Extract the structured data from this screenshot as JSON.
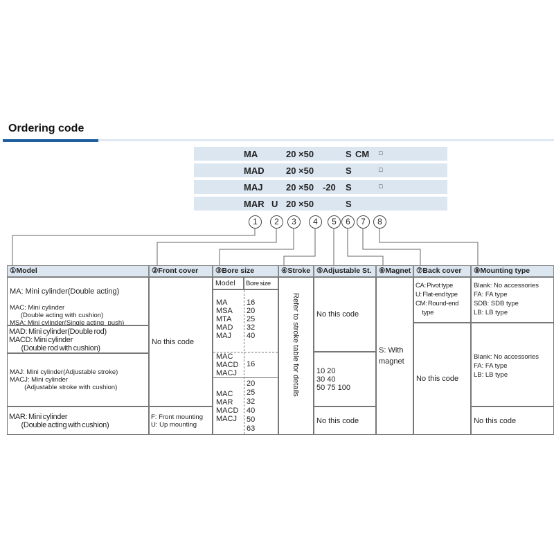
{
  "title": "Ordering code",
  "code_rows": [
    {
      "model": "MA",
      "front": "",
      "bore": "20",
      "stroke": "×50",
      "adj": "",
      "magnet": "S",
      "back": "CM",
      "mount": "□"
    },
    {
      "model": "MAD",
      "front": "",
      "bore": "20",
      "stroke": "×50",
      "adj": "",
      "magnet": "S",
      "back": "",
      "mount": "□"
    },
    {
      "model": "MAJ",
      "front": "",
      "bore": "20",
      "stroke": "×50",
      "adj": "-20",
      "magnet": "S",
      "back": "",
      "mount": "□"
    },
    {
      "model": "MAR",
      "front": "U",
      "bore": "20",
      "stroke": "×50",
      "adj": "",
      "magnet": "S",
      "back": "",
      "mount": ""
    }
  ],
  "markers": [
    "1",
    "2",
    "3",
    "4",
    "5",
    "6",
    "7",
    "8"
  ],
  "headers": [
    "①Model",
    "②Front cover",
    "③Bore size",
    "④Stroke",
    "⑤Adjustable St.",
    "⑥Magnet",
    "⑦Back cover",
    "⑧Mounting type"
  ],
  "model": {
    "g1a": "MA: Mini cylinder(Double acting)",
    "g1b": "MAC: Mini cylinder\n      (Double acting with cushion)\nMSA: Mini cylinder(Single acting_push)\nMTA: Mini cylinder(Single acting_pull)",
    "g2": "MAD: Mini cylinder(Double rod)\nMACD: Mini cylinder\n          (Double rod with cushion)",
    "g3": "MAJ: Mini cylinder(Adjustable stroke)\nMACJ: Mini cylinder\n        (Adjustable stroke with cushion)",
    "g4": "MAR: Mini cylinder\n          (Double acting with cushion)"
  },
  "front": {
    "none": "No this code",
    "mar": "F: Front mounting\nU: Up mounting"
  },
  "bore": {
    "sub_model": "Model",
    "sub_bore": "Bore size",
    "g1_models": "MA\nMSA\nMTA\nMAD\nMAJ",
    "g1_sizes": "16\n20\n25\n32\n40",
    "g2_models": "MAC\nMACD\nMACJ",
    "g2_sizes": "16",
    "g3_models": "MAC\nMAR\nMACD\nMACJ",
    "g3_sizes": "20\n25\n32\n40\n50\n63"
  },
  "stroke": "Refer to stroke table for details",
  "adjustable": {
    "g1": "No this code",
    "g2": "10 20\n30 40\n50 75 100",
    "g3": "No this code"
  },
  "magnet": "S: With\nmagnet",
  "back": {
    "g1": "CA: Pivot type\nU: Flat-end type\nCM: Round-end\n       type",
    "g2": "No this code"
  },
  "mounting": {
    "g1": "Blank: No accessories\nFA: FA type\nSDB: SDB type\nLB: LB type",
    "g2": "Blank: No accessories\nFA: FA type\nLB: LB type",
    "g3": "No this code"
  },
  "colors": {
    "accent": "#1f5fa0",
    "band": "#dbe6f1"
  }
}
